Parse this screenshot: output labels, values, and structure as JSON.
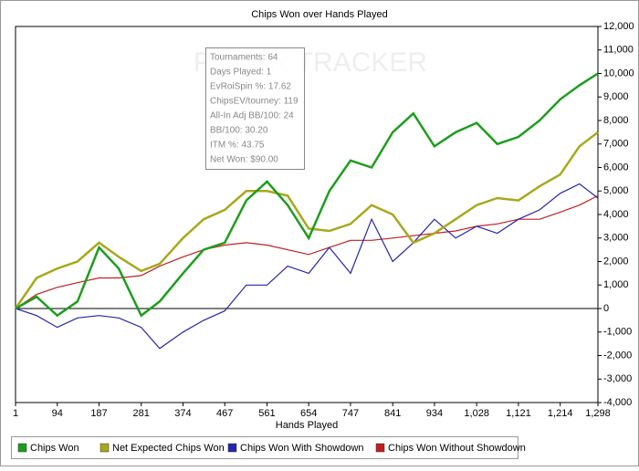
{
  "chart_data": {
    "type": "line",
    "title": "Chips Won over Hands Played",
    "x_label": "Hands Played",
    "watermark": "POKER TRACKER",
    "info_box": [
      "Tournaments: 64",
      "Days Played: 1",
      "EvRoiSpin %: 17.62",
      "ChipsEV/tourney: 119",
      "All-In Adj BB/100: 24",
      "BB/100: 30.20",
      "ITM %: 43.75",
      "Net Won: $90.00"
    ],
    "x": [
      1,
      48,
      94,
      139,
      187,
      231,
      281,
      322,
      374,
      420,
      467,
      515,
      561,
      607,
      654,
      700,
      747,
      794,
      841,
      887,
      934,
      981,
      1028,
      1074,
      1121,
      1168,
      1214,
      1257,
      1298
    ],
    "xlim": [
      1,
      1298
    ],
    "xticks": [
      1,
      94,
      187,
      281,
      374,
      467,
      561,
      654,
      747,
      841,
      934,
      {
        "value": 1028,
        "label": "1,028"
      },
      {
        "value": 1121,
        "label": "1,121"
      },
      {
        "value": 1214,
        "label": "1,214"
      },
      {
        "value": 1298,
        "label": "1,298"
      }
    ],
    "ylim": [
      -4000,
      12000
    ],
    "yticks": [
      {
        "value": -4000,
        "label": "-4,000"
      },
      {
        "value": -3000,
        "label": "-3,000"
      },
      {
        "value": -2000,
        "label": "-2,000"
      },
      {
        "value": -1000,
        "label": "-1,000"
      },
      0,
      {
        "value": 1000,
        "label": "1,000"
      },
      {
        "value": 2000,
        "label": "2,000"
      },
      {
        "value": 3000,
        "label": "3,000"
      },
      {
        "value": 4000,
        "label": "4,000"
      },
      {
        "value": 5000,
        "label": "5,000"
      },
      {
        "value": 6000,
        "label": "6,000"
      },
      {
        "value": 7000,
        "label": "7,000"
      },
      {
        "value": 8000,
        "label": "8,000"
      },
      {
        "value": 9000,
        "label": "9,000"
      },
      {
        "value": 10000,
        "label": "10,000"
      },
      {
        "value": 11000,
        "label": "11,000"
      },
      {
        "value": 12000,
        "label": "12,000"
      }
    ],
    "series": [
      {
        "name": "Chips Won",
        "color": "#1c9e1c",
        "values": [
          0,
          500,
          -300,
          300,
          2600,
          1700,
          -300,
          300,
          1500,
          2500,
          2800,
          4600,
          5400,
          4400,
          3000,
          5000,
          6300,
          6000,
          7500,
          8300,
          6900,
          7500,
          7900,
          7000,
          7300,
          8000,
          8900,
          9500,
          10000
        ]
      },
      {
        "name": "Net Expected Chips Won",
        "color": "#a8a81e",
        "values": [
          0,
          1300,
          1700,
          2000,
          2800,
          2200,
          1600,
          1900,
          3000,
          3800,
          4200,
          5000,
          5000,
          4800,
          3400,
          3300,
          3600,
          4400,
          4000,
          2800,
          3200,
          3800,
          4400,
          4700,
          4600,
          5200,
          5700,
          6900,
          7500
        ]
      },
      {
        "name": "Chips Won With Showdown",
        "color": "#2626ad",
        "values": [
          0,
          -300,
          -800,
          -400,
          -300,
          -400,
          -800,
          -1700,
          -1000,
          -500,
          -100,
          1000,
          1000,
          1800,
          1500,
          2600,
          1500,
          3800,
          2000,
          2800,
          3800,
          3000,
          3500,
          3200,
          3800,
          4200,
          4900,
          5300,
          4700
        ]
      },
      {
        "name": "Chips Won Without Showdown",
        "color": "#c02020",
        "values": [
          0,
          600,
          900,
          1100,
          1300,
          1300,
          1400,
          1800,
          2200,
          2500,
          2700,
          2800,
          2700,
          2500,
          2300,
          2600,
          2900,
          2900,
          3000,
          3100,
          3200,
          3300,
          3500,
          3600,
          3800,
          3800,
          4100,
          4400,
          4800
        ]
      }
    ]
  }
}
